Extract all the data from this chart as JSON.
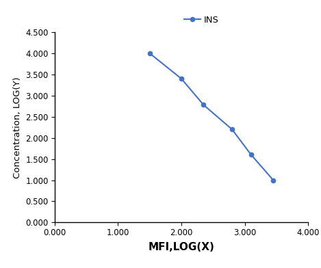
{
  "x": [
    1.5,
    2.0,
    2.35,
    2.8,
    3.1,
    3.45
  ],
  "y": [
    4.0,
    3.4,
    2.78,
    2.2,
    1.6,
    1.0
  ],
  "line_color": "#4472C4",
  "marker": "o",
  "marker_size": 4.5,
  "line_width": 1.5,
  "legend_label": "INS",
  "xlabel": "MFI,LOG(X)",
  "ylabel": "Concentration, LOG(Y)",
  "xlim": [
    0.0,
    4.0
  ],
  "ylim": [
    0.0,
    4.5
  ],
  "xticks": [
    0.0,
    1.0,
    2.0,
    3.0,
    4.0
  ],
  "yticks": [
    0.0,
    0.5,
    1.0,
    1.5,
    2.0,
    2.5,
    3.0,
    3.5,
    4.0,
    4.5
  ],
  "xtick_labels": [
    "0.000",
    "1.000",
    "2.000",
    "3.000",
    "4.000"
  ],
  "ytick_labels": [
    "0.000",
    "0.500",
    "1.000",
    "1.500",
    "2.000",
    "2.500",
    "3.000",
    "3.500",
    "4.000",
    "4.500"
  ],
  "background_color": "#ffffff",
  "xlabel_fontsize": 11,
  "ylabel_fontsize": 9.5,
  "tick_fontsize": 8.5,
  "legend_fontsize": 9.5
}
